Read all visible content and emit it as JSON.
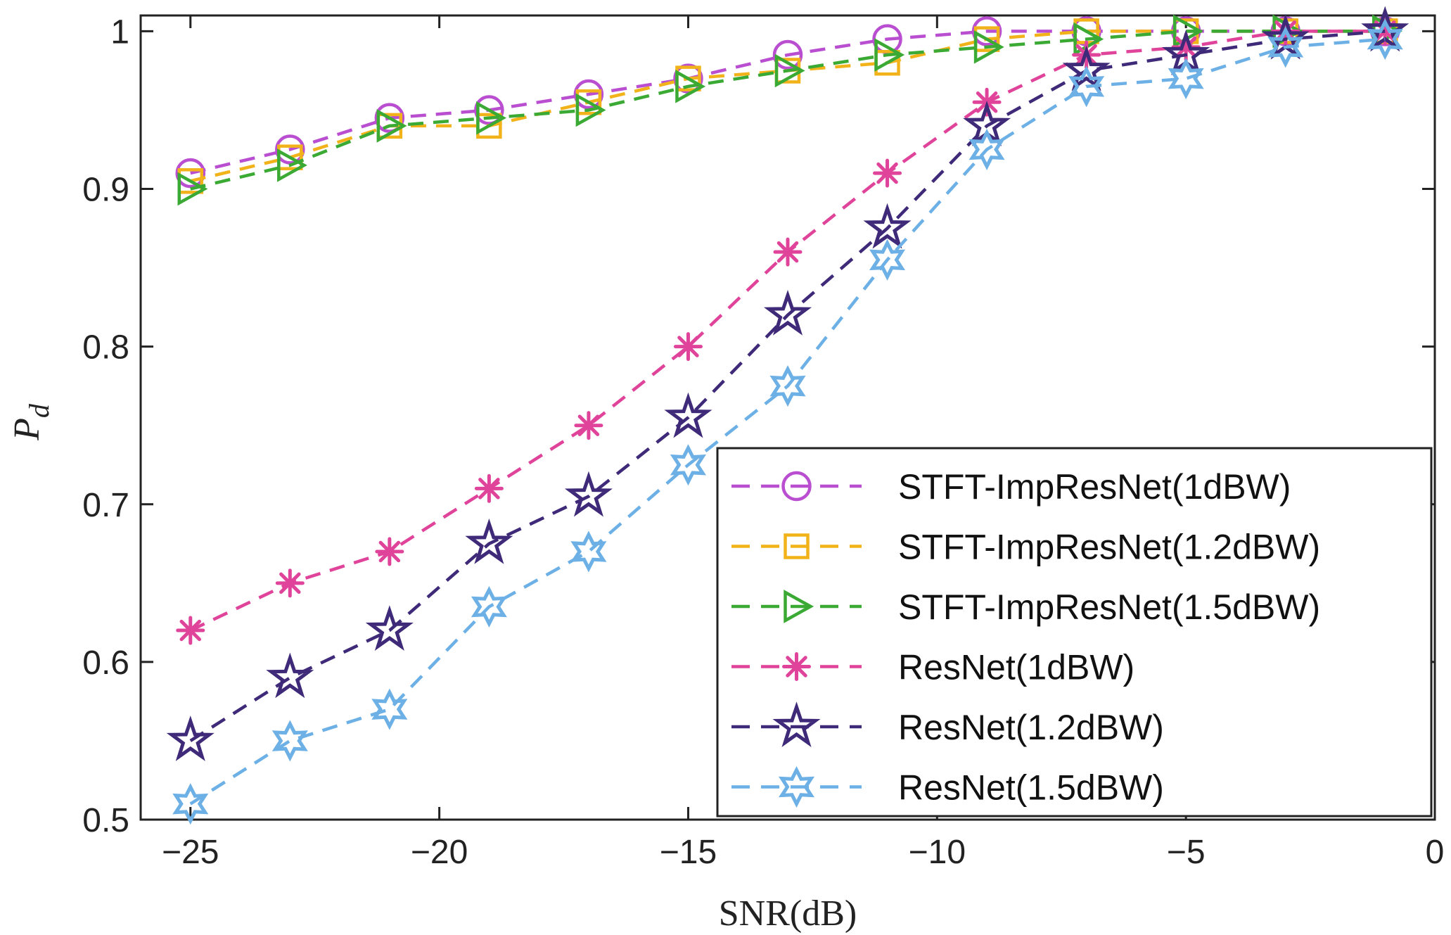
{
  "chart_data": {
    "type": "line",
    "title": "",
    "xlabel": "SNR(dB)",
    "ylabel": "P",
    "ylabel_subscript": "d",
    "xlim": [
      -26,
      0
    ],
    "ylim": [
      0.5,
      1.01
    ],
    "xticks": [
      -25,
      -20,
      -15,
      -10,
      -5,
      0
    ],
    "xtick_labels": [
      "−25",
      "−20",
      "−15",
      "−10",
      "−5",
      "0"
    ],
    "yticks": [
      0.5,
      0.6,
      0.7,
      0.8,
      0.9,
      1.0
    ],
    "ytick_labels": [
      "0.5",
      "0.6",
      "0.7",
      "0.8",
      "0.9",
      "1"
    ],
    "grid": false,
    "legend_position": "bottom-right",
    "x": [
      -25,
      -23,
      -21,
      -19,
      -17,
      -15,
      -13,
      -11,
      -9,
      -7,
      -5,
      -3,
      -1
    ],
    "series": [
      {
        "name": "STFT-ImpResNet(1dBW)",
        "color": "#B94FD0",
        "marker": "circle",
        "values": [
          0.91,
          0.925,
          0.945,
          0.95,
          0.96,
          0.97,
          0.985,
          0.995,
          1.0,
          1.0,
          1.0,
          1.0,
          1.0
        ]
      },
      {
        "name": "STFT-ImpResNet(1.2dBW)",
        "color": "#F2B31A",
        "marker": "square",
        "values": [
          0.905,
          0.92,
          0.94,
          0.94,
          0.955,
          0.97,
          0.975,
          0.98,
          0.995,
          1.0,
          1.0,
          1.0,
          1.0
        ]
      },
      {
        "name": "STFT-ImpResNet(1.5dBW)",
        "color": "#3BAA35",
        "marker": "triangle-right",
        "values": [
          0.9,
          0.915,
          0.94,
          0.945,
          0.95,
          0.965,
          0.975,
          0.985,
          0.99,
          0.995,
          1.0,
          1.0,
          1.0
        ]
      },
      {
        "name": "ResNet(1dBW)",
        "color": "#E0449A",
        "marker": "asterisk",
        "values": [
          0.62,
          0.65,
          0.67,
          0.71,
          0.75,
          0.8,
          0.86,
          0.91,
          0.955,
          0.985,
          0.99,
          1.0,
          1.0
        ]
      },
      {
        "name": "ResNet(1.2dBW)",
        "color": "#3E2A78",
        "marker": "star5",
        "values": [
          0.55,
          0.59,
          0.62,
          0.675,
          0.705,
          0.755,
          0.82,
          0.875,
          0.94,
          0.975,
          0.985,
          0.995,
          1.0
        ]
      },
      {
        "name": "ResNet(1.5dBW)",
        "color": "#6CB0E6",
        "marker": "star6",
        "values": [
          0.51,
          0.55,
          0.57,
          0.635,
          0.67,
          0.725,
          0.775,
          0.855,
          0.925,
          0.965,
          0.97,
          0.99,
          0.995
        ]
      }
    ]
  }
}
